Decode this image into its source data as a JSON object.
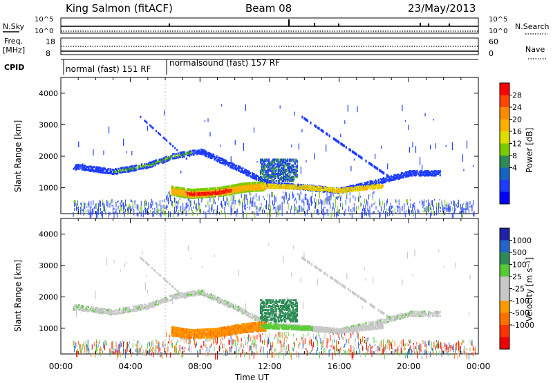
{
  "header": {
    "station": "King Salmon (fitACF)",
    "beam": "Beam 08",
    "date": "23/May/2013"
  },
  "strip_labels": {
    "nsky": "N.Sky",
    "nsky_top": "10^5",
    "nsky_bottom": "10^0",
    "freq": "Freq.",
    "freq_unit": "[MHz]",
    "freq_top": "18",
    "freq_bottom": "8",
    "nsearch": "N.Search",
    "nsearch_top": "10^5",
    "nsearch_bottom": "10^0",
    "nave": "Nave",
    "nave_top": "60",
    "nave_bottom": "0",
    "cpid": "CPID",
    "mode1": "normal (fast) 151 RF",
    "mode2": "normalsound (fast) 157 RF"
  },
  "power_scale": {
    "label": "Power [dB]",
    "ticks": [
      "28",
      "24",
      "20",
      "16",
      "12",
      "8",
      "4"
    ],
    "colors": [
      "#ff0000",
      "#ff4500",
      "#ff8c00",
      "#ffb000",
      "#dede00",
      "#7acc00",
      "#2e8b57",
      "#1565c0",
      "#1e3cff",
      "#0000ff"
    ]
  },
  "velocity_scale": {
    "label": "Velocity [m s⁻¹]",
    "ticks": [
      "1000",
      "500",
      "100",
      "25",
      "-25",
      "-100",
      "-500",
      "-1000"
    ],
    "colors": [
      "#2020a8",
      "#2266cc",
      "#2e8b57",
      "#55cc33",
      "#c8c8c8",
      "#c8c8c8",
      "#ff9a00",
      "#ff7000",
      "#ff3300",
      "#ee0000"
    ]
  },
  "chart_data": [
    {
      "type": "heatmap",
      "title": "Power",
      "ylabel": "Slant Range [km]",
      "xlabel": "",
      "xlim": [
        0,
        24
      ],
      "ylim": [
        180,
        4500
      ],
      "y_ticks": [
        "1000",
        "2000",
        "3000",
        "4000"
      ],
      "x_ticks": [
        "00:00",
        "04:00",
        "08:00",
        "12:00",
        "16:00",
        "20:00",
        "00:00"
      ],
      "features": [
        {
          "name": "main-band",
          "hours": [
            1,
            3,
            5,
            6.5,
            8,
            10,
            12,
            14,
            16,
            18,
            20,
            21.5
          ],
          "range_km": [
            1700,
            1550,
            1750,
            2050,
            2200,
            1700,
            1150,
            1050,
            950,
            1200,
            1500,
            1500
          ]
        },
        {
          "name": "strong-echo",
          "hours": [
            7.5,
            9.5
          ],
          "range_km": [
            850,
            1050
          ],
          "power_db": 28
        }
      ]
    },
    {
      "type": "heatmap",
      "title": "Velocity",
      "ylabel": "Slant Range [km]",
      "xlabel": "Time UT",
      "xlim": [
        0,
        24
      ],
      "ylim": [
        180,
        4500
      ],
      "y_ticks": [
        "1000",
        "2000",
        "3000",
        "4000"
      ],
      "x_ticks": [
        "00:00",
        "04:00",
        "08:00",
        "12:00",
        "16:00",
        "20:00",
        "00:00"
      ],
      "features": [
        {
          "name": "grey-band",
          "hours": [
            1,
            3,
            5,
            6.5,
            8,
            10
          ],
          "range_km": [
            1700,
            1550,
            1750,
            2050,
            2200,
            1700
          ],
          "velocity": 0
        },
        {
          "name": "orange-flow",
          "hours": [
            6.5,
            8,
            10,
            11.5
          ],
          "range_km": [
            950,
            900,
            1100,
            1100
          ],
          "velocity": -300
        },
        {
          "name": "green-patch",
          "hours": [
            11.5,
            13
          ],
          "range_km": [
            1300,
            1900
          ],
          "velocity": 300
        }
      ]
    }
  ]
}
